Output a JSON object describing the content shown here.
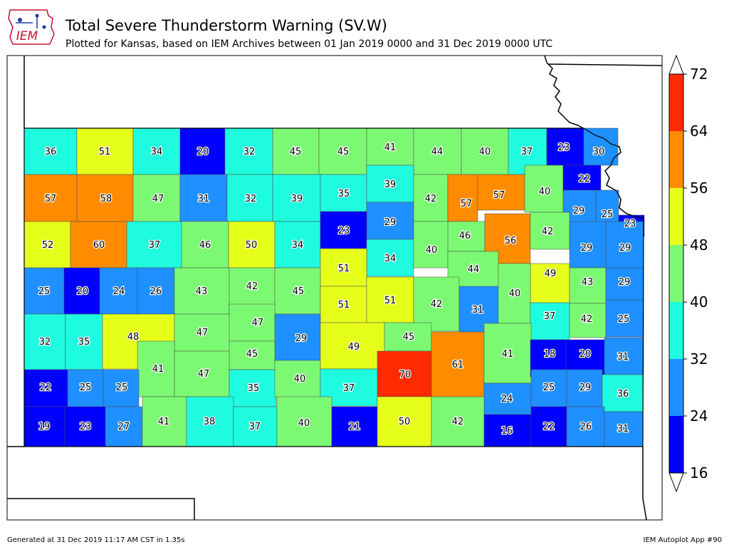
{
  "header": {
    "logo_text": "IEM",
    "title": "Total Severe Thunderstorm Warning (SV.W)",
    "subtitle": "Plotted for Kansas, based on IEM Archives  between 01 Jan 2019 0000 and 31 Dec 2019 0000 UTC"
  },
  "footer": {
    "generated": "Generated at 31 Dec 2019 11:17 AM CST in 1.35s",
    "app": "IEM Autoplot App #90"
  },
  "legend": {
    "ticks": [
      "16",
      "24",
      "32",
      "40",
      "48",
      "56",
      "64",
      "72"
    ],
    "bins": [
      {
        "min": 16,
        "max": 24,
        "color": "#0000ff"
      },
      {
        "min": 24,
        "max": 32,
        "color": "#1e90ff"
      },
      {
        "min": 32,
        "max": 40,
        "color": "#1ffbde"
      },
      {
        "min": 40,
        "max": 48,
        "color": "#7cf973"
      },
      {
        "min": 48,
        "max": 56,
        "color": "#e6ff1a"
      },
      {
        "min": 56,
        "max": 64,
        "color": "#ff8c00"
      },
      {
        "min": 64,
        "max": 72,
        "color": "#ff2a00"
      }
    ]
  },
  "counties": [
    {
      "v": "36"
    },
    {
      "v": "51"
    },
    {
      "v": "34"
    },
    {
      "v": "20"
    },
    {
      "v": "32"
    },
    {
      "v": "45"
    },
    {
      "v": "45"
    },
    {
      "v": "41"
    },
    {
      "v": "44"
    },
    {
      "v": "40"
    },
    {
      "v": "37"
    },
    {
      "v": "23"
    },
    {
      "v": "30"
    },
    {
      "v": "57"
    },
    {
      "v": "58"
    },
    {
      "v": "47"
    },
    {
      "v": "31"
    },
    {
      "v": "32"
    },
    {
      "v": "39"
    },
    {
      "v": "35"
    },
    {
      "v": "39"
    },
    {
      "v": "42"
    },
    {
      "v": "57"
    },
    {
      "v": "57"
    },
    {
      "v": "40"
    },
    {
      "v": "22"
    },
    {
      "v": "29"
    },
    {
      "v": "25"
    },
    {
      "v": "23"
    },
    {
      "v": "29"
    },
    {
      "v": "46"
    },
    {
      "v": "56"
    },
    {
      "v": "42"
    },
    {
      "v": "52"
    },
    {
      "v": "60"
    },
    {
      "v": "37"
    },
    {
      "v": "46"
    },
    {
      "v": "50"
    },
    {
      "v": "34"
    },
    {
      "v": "23"
    },
    {
      "v": "34"
    },
    {
      "v": "40"
    },
    {
      "v": "29"
    },
    {
      "v": "29"
    },
    {
      "v": "51"
    },
    {
      "v": "44"
    },
    {
      "v": "49"
    },
    {
      "v": "43"
    },
    {
      "v": "25"
    },
    {
      "v": "20"
    },
    {
      "v": "24"
    },
    {
      "v": "26"
    },
    {
      "v": "43"
    },
    {
      "v": "42"
    },
    {
      "v": "45"
    },
    {
      "v": "29"
    },
    {
      "v": "51"
    },
    {
      "v": "51"
    },
    {
      "v": "42"
    },
    {
      "v": "31"
    },
    {
      "v": "40"
    },
    {
      "v": "37"
    },
    {
      "v": "42"
    },
    {
      "v": "25"
    },
    {
      "v": "32"
    },
    {
      "v": "35"
    },
    {
      "v": "48"
    },
    {
      "v": "47"
    },
    {
      "v": "47"
    },
    {
      "v": "29"
    },
    {
      "v": "49"
    },
    {
      "v": "45"
    },
    {
      "v": "41"
    },
    {
      "v": "45"
    },
    {
      "v": "70"
    },
    {
      "v": "61"
    },
    {
      "v": "41"
    },
    {
      "v": "18"
    },
    {
      "v": "20"
    },
    {
      "v": "31"
    },
    {
      "v": "22"
    },
    {
      "v": "25"
    },
    {
      "v": "25"
    },
    {
      "v": "47"
    },
    {
      "v": "35"
    },
    {
      "v": "40"
    },
    {
      "v": "37"
    },
    {
      "v": "24"
    },
    {
      "v": "25"
    },
    {
      "v": "29"
    },
    {
      "v": "36"
    },
    {
      "v": "19"
    },
    {
      "v": "23"
    },
    {
      "v": "27"
    },
    {
      "v": "41"
    },
    {
      "v": "38"
    },
    {
      "v": "37"
    },
    {
      "v": "40"
    },
    {
      "v": "21"
    },
    {
      "v": "50"
    },
    {
      "v": "42"
    },
    {
      "v": "16"
    },
    {
      "v": "22"
    },
    {
      "v": "26"
    },
    {
      "v": "31"
    }
  ]
}
